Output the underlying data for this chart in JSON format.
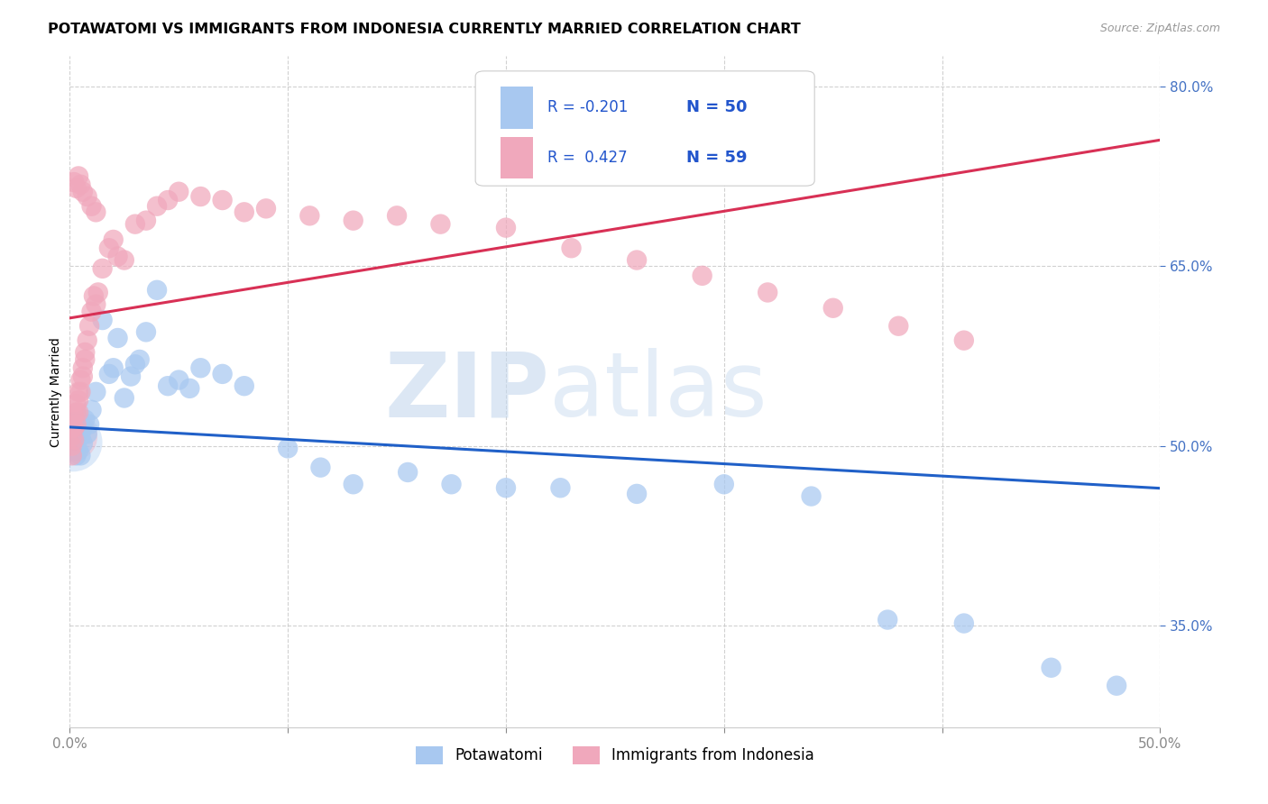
{
  "title": "POTAWATOMI VS IMMIGRANTS FROM INDONESIA CURRENTLY MARRIED CORRELATION CHART",
  "source": "Source: ZipAtlas.com",
  "ylabel": "Currently Married",
  "watermark_zip": "ZIP",
  "watermark_atlas": "atlas",
  "legend_blue_r": "-0.201",
  "legend_blue_n": "50",
  "legend_pink_r": "0.427",
  "legend_pink_n": "59",
  "legend_label1": "Potawatomi",
  "legend_label2": "Immigrants from Indonesia",
  "blue_color": "#A8C8F0",
  "pink_color": "#F0A8BC",
  "blue_line_color": "#2060C8",
  "pink_line_color": "#D83055",
  "blue_r": -0.201,
  "pink_r": 0.427,
  "xlim": [
    0.0,
    0.5
  ],
  "ylim": [
    0.265,
    0.825
  ],
  "yticks": [
    0.35,
    0.5,
    0.65,
    0.8
  ],
  "xtick_positions": [
    0.0,
    0.1,
    0.2,
    0.3,
    0.4,
    0.5
  ],
  "pot_x": [
    0.001,
    0.001,
    0.001,
    0.002,
    0.002,
    0.002,
    0.003,
    0.003,
    0.003,
    0.004,
    0.004,
    0.005,
    0.005,
    0.006,
    0.006,
    0.007,
    0.008,
    0.009,
    0.01,
    0.012,
    0.015,
    0.018,
    0.02,
    0.025,
    0.03,
    0.035,
    0.04,
    0.05,
    0.06,
    0.07,
    0.08,
    0.1,
    0.115,
    0.13,
    0.155,
    0.175,
    0.2,
    0.225,
    0.26,
    0.3,
    0.34,
    0.375,
    0.41,
    0.45,
    0.48,
    0.022,
    0.028,
    0.032,
    0.045,
    0.055
  ],
  "pot_y": [
    0.515,
    0.505,
    0.498,
    0.52,
    0.505,
    0.495,
    0.508,
    0.5,
    0.492,
    0.512,
    0.496,
    0.508,
    0.492,
    0.502,
    0.515,
    0.522,
    0.51,
    0.518,
    0.53,
    0.545,
    0.605,
    0.56,
    0.565,
    0.54,
    0.568,
    0.595,
    0.63,
    0.555,
    0.565,
    0.56,
    0.55,
    0.498,
    0.482,
    0.468,
    0.478,
    0.468,
    0.465,
    0.465,
    0.46,
    0.468,
    0.458,
    0.355,
    0.352,
    0.315,
    0.3,
    0.59,
    0.558,
    0.572,
    0.55,
    0.548
  ],
  "ind_x": [
    0.001,
    0.001,
    0.001,
    0.001,
    0.002,
    0.002,
    0.002,
    0.003,
    0.003,
    0.003,
    0.004,
    0.004,
    0.004,
    0.005,
    0.005,
    0.006,
    0.006,
    0.007,
    0.007,
    0.008,
    0.009,
    0.01,
    0.011,
    0.012,
    0.013,
    0.015,
    0.018,
    0.02,
    0.022,
    0.025,
    0.03,
    0.035,
    0.04,
    0.045,
    0.05,
    0.06,
    0.07,
    0.08,
    0.09,
    0.11,
    0.13,
    0.15,
    0.17,
    0.2,
    0.23,
    0.26,
    0.29,
    0.32,
    0.35,
    0.38,
    0.41,
    0.002,
    0.003,
    0.004,
    0.005,
    0.006,
    0.008,
    0.01,
    0.012
  ],
  "ind_y": [
    0.515,
    0.508,
    0.5,
    0.492,
    0.525,
    0.515,
    0.505,
    0.535,
    0.528,
    0.518,
    0.545,
    0.538,
    0.528,
    0.555,
    0.545,
    0.565,
    0.558,
    0.578,
    0.572,
    0.588,
    0.6,
    0.612,
    0.625,
    0.618,
    0.628,
    0.648,
    0.665,
    0.672,
    0.658,
    0.655,
    0.685,
    0.688,
    0.7,
    0.705,
    0.712,
    0.708,
    0.705,
    0.695,
    0.698,
    0.692,
    0.688,
    0.692,
    0.685,
    0.682,
    0.665,
    0.655,
    0.642,
    0.628,
    0.615,
    0.6,
    0.588,
    0.72,
    0.715,
    0.725,
    0.718,
    0.712,
    0.708,
    0.7,
    0.695
  ],
  "title_fontsize": 11.5,
  "source_fontsize": 9,
  "ylabel_fontsize": 10,
  "tick_fontsize": 11,
  "legend_fontsize": 12
}
